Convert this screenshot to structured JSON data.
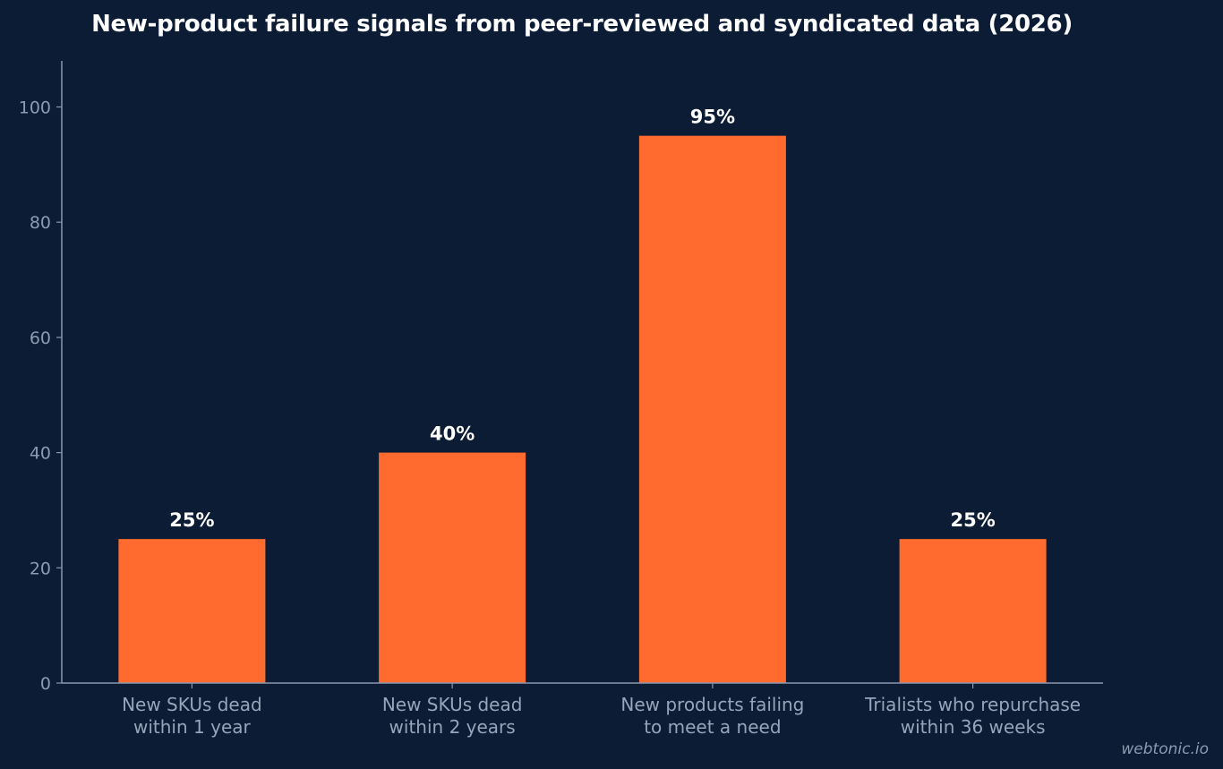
{
  "chart_data": {
    "type": "bar",
    "title": "New-product failure signals from peer-reviewed and syndicated data (2026)",
    "categories": [
      [
        "New SKUs dead",
        "within 1 year"
      ],
      [
        "New SKUs dead",
        "within 2 years"
      ],
      [
        "New products failing",
        "to meet a need"
      ],
      [
        "Trialists who repurchase",
        "within 36 weeks"
      ]
    ],
    "values": [
      25,
      40,
      95,
      25
    ],
    "value_labels": [
      "25%",
      "40%",
      "95%",
      "25%"
    ],
    "ylim": [
      0,
      108
    ],
    "yticks": [
      0,
      20,
      40,
      60,
      80,
      100
    ],
    "bar_color": "#ff6b2e",
    "grid": false,
    "legend": "none"
  },
  "watermark": "webtonic.io"
}
